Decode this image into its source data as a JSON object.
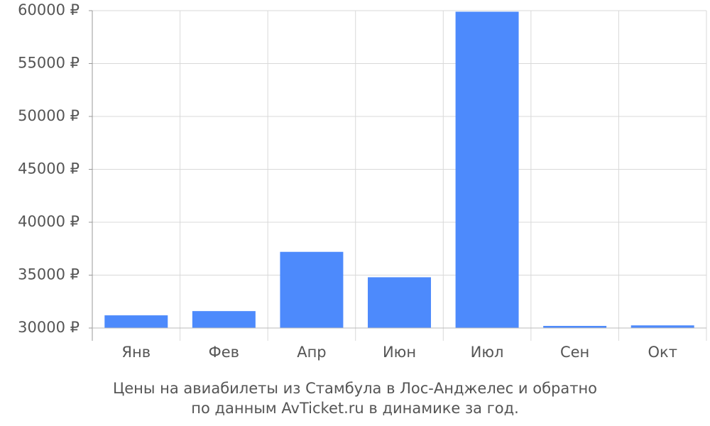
{
  "chart_data": {
    "type": "bar",
    "caption": [
      "Цены на авиабилеты из Стамбула в Лос-Анджелес и обратно",
      "по данным AvTicket.ru в динамике за год."
    ],
    "categories": [
      "Янв",
      "Фев",
      "Апр",
      "Июн",
      "Июл",
      "Сен",
      "Окт"
    ],
    "values": [
      31200,
      31600,
      37200,
      34800,
      59900,
      30200,
      30250
    ],
    "color": "#4d8afc",
    "ylim": [
      30000,
      60000
    ],
    "yticks": [
      {
        "value": 30000,
        "label": "30000 ₽"
      },
      {
        "value": 35000,
        "label": "35000 ₽"
      },
      {
        "value": 40000,
        "label": "40000 ₽"
      },
      {
        "value": 45000,
        "label": "45000 ₽"
      },
      {
        "value": 50000,
        "label": "50000 ₽"
      },
      {
        "value": 55000,
        "label": "55000 ₽"
      },
      {
        "value": 60000,
        "label": "60000 ₽"
      }
    ],
    "grid": true
  }
}
